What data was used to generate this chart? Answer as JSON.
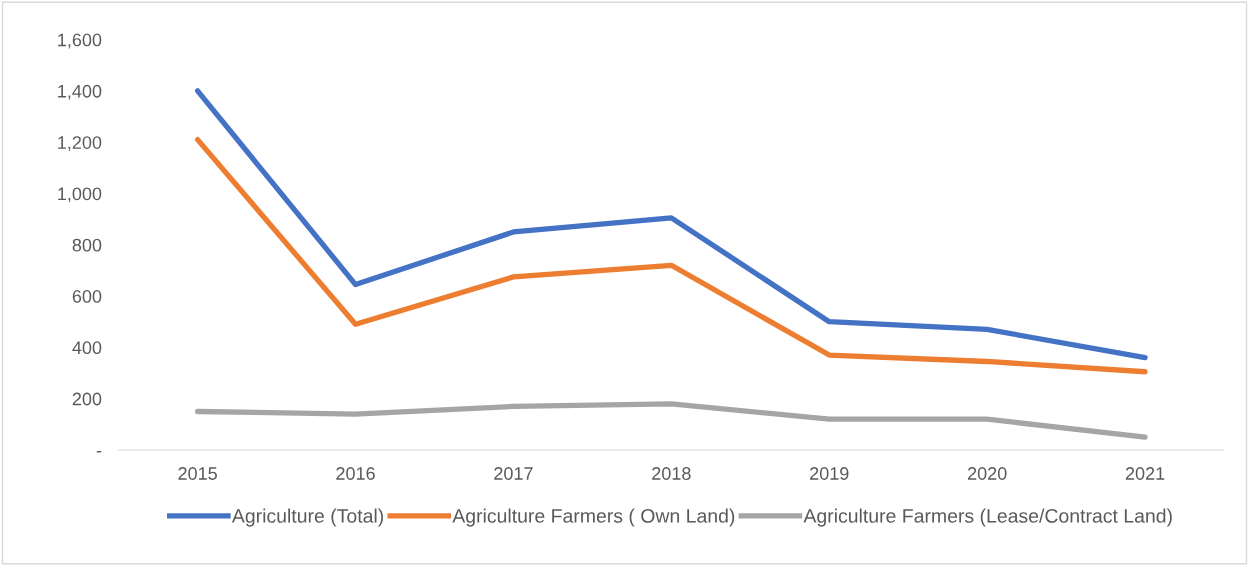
{
  "chart_data": {
    "type": "line",
    "categories": [
      "2015",
      "2016",
      "2017",
      "2018",
      "2019",
      "2020",
      "2021"
    ],
    "series": [
      {
        "name": "Agriculture (Total)",
        "color": "#4472c4",
        "values": [
          1400,
          645,
          850,
          905,
          500,
          470,
          360
        ]
      },
      {
        "name": "Agriculture Farmers ( Own Land)",
        "color": "#ed7d31",
        "values": [
          1210,
          490,
          675,
          720,
          370,
          345,
          305
        ]
      },
      {
        "name": "Agriculture Farmers (Lease/Contract Land)",
        "color": "#a5a5a5",
        "values": [
          150,
          140,
          170,
          180,
          120,
          120,
          50
        ]
      }
    ],
    "ylim": [
      0,
      1600
    ],
    "yticks": [
      {
        "value": 0,
        "label": "-"
      },
      {
        "value": 200,
        "label": "200"
      },
      {
        "value": 400,
        "label": "400"
      },
      {
        "value": 600,
        "label": "600"
      },
      {
        "value": 800,
        "label": "800"
      },
      {
        "value": 1000,
        "label": "1,000"
      },
      {
        "value": 1200,
        "label": "1,200"
      },
      {
        "value": 1400,
        "label": "1,400"
      },
      {
        "value": 1600,
        "label": "1,600"
      }
    ],
    "grid": false,
    "legend": "bottom",
    "marker": "none",
    "line_style": "solid"
  }
}
